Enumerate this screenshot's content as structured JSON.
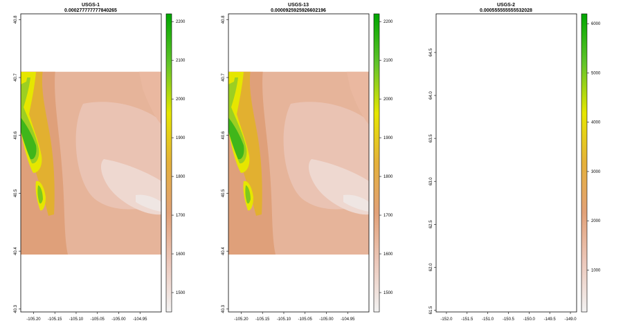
{
  "chart_data": [
    {
      "type": "heatmap",
      "title": "USGS-1",
      "subtitle": "0.000277777777840265",
      "xlabel": "",
      "ylabel": "",
      "xlim": [
        -105.23,
        -104.9
      ],
      "ylim": [
        40.295,
        40.81
      ],
      "x_ticks": [
        "-105.20",
        "-105.15",
        "-105.10",
        "-105.05",
        "-105.00",
        "-104.95"
      ],
      "y_ticks": [
        "40.3",
        "40.4",
        "40.5",
        "40.6",
        "40.7",
        "40.8"
      ],
      "data_extent": {
        "x": [
          -105.23,
          -104.9
        ],
        "y": [
          40.39,
          40.71
        ]
      },
      "colorbar": {
        "min": 1450,
        "max": 2220,
        "ticks": [
          "1500",
          "1600",
          "1700",
          "1800",
          "1900",
          "2000",
          "2100",
          "2200"
        ]
      },
      "colormap": [
        "#f2f2f2",
        "#ecc8bb",
        "#e2a178",
        "#e5b13b",
        "#e6e600",
        "#62c42a",
        "#00a600"
      ]
    },
    {
      "type": "heatmap",
      "title": "USGS-13",
      "subtitle": "0.0000925925926602196",
      "xlabel": "",
      "ylabel": "",
      "xlim": [
        -105.23,
        -104.9
      ],
      "ylim": [
        40.295,
        40.81
      ],
      "x_ticks": [
        "-105.20",
        "-105.15",
        "-105.10",
        "-105.05",
        "-105.00",
        "-104.95"
      ],
      "y_ticks": [
        "40.3",
        "40.4",
        "40.5",
        "40.6",
        "40.7",
        "40.8"
      ],
      "data_extent": {
        "x": [
          -105.23,
          -104.9
        ],
        "y": [
          40.39,
          40.71
        ]
      },
      "colorbar": {
        "min": 1450,
        "max": 2220,
        "ticks": [
          "1500",
          "1600",
          "1700",
          "1800",
          "1900",
          "2000",
          "2100",
          "2200"
        ]
      },
      "colormap": [
        "#f2f2f2",
        "#ecc8bb",
        "#e2a178",
        "#e5b13b",
        "#e6e600",
        "#62c42a",
        "#00a600"
      ]
    },
    {
      "type": "heatmap",
      "title": "USGS-2",
      "subtitle": "0.000555555555532028",
      "xlabel": "",
      "ylabel": "",
      "xlim": [
        -152.25,
        -148.85
      ],
      "ylim": [
        61.48,
        64.95
      ],
      "x_ticks": [
        "-152.0",
        "-151.5",
        "-151.0",
        "-150.5",
        "-150.0",
        "-149.5",
        "-149.0"
      ],
      "y_ticks": [
        "61.5",
        "62.0",
        "62.5",
        "63.0",
        "63.5",
        "64.0",
        "64.5"
      ],
      "data_extent": {
        "x": [
          -152.25,
          -148.85
        ],
        "y": [
          62.47,
          63.99
        ]
      },
      "colorbar": {
        "min": 150,
        "max": 6200,
        "ticks": [
          "1000",
          "2000",
          "3000",
          "4000",
          "5000",
          "6000"
        ]
      },
      "colormap": [
        "#f2f2f2",
        "#ecc8bb",
        "#e2a178",
        "#e5b13b",
        "#e6e600",
        "#62c42a",
        "#00a600"
      ]
    }
  ]
}
